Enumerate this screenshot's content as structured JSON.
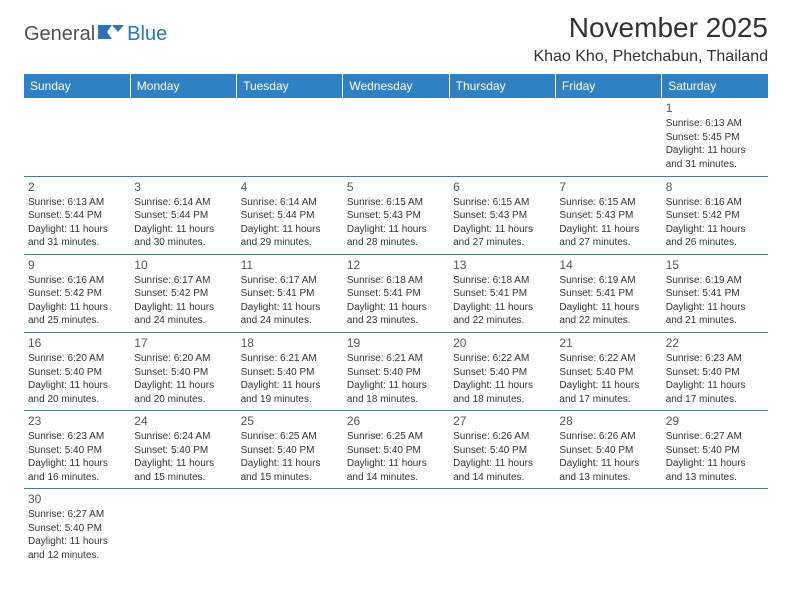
{
  "logo": {
    "part1": "General",
    "part2": "Blue"
  },
  "title": "November 2025",
  "location": "Khao Kho, Phetchabun, Thailand",
  "colors": {
    "header_bg": "#3080c4",
    "header_text": "#ffffff",
    "border": "#3080c4",
    "logo_gray": "#505050",
    "logo_blue": "#2975b9",
    "text": "#333333"
  },
  "days": [
    "Sunday",
    "Monday",
    "Tuesday",
    "Wednesday",
    "Thursday",
    "Friday",
    "Saturday"
  ],
  "weeks": [
    [
      null,
      null,
      null,
      null,
      null,
      null,
      {
        "n": "1",
        "sr": "6:13 AM",
        "ss": "5:45 PM",
        "dl": "11 hours and 31 minutes."
      }
    ],
    [
      {
        "n": "2",
        "sr": "6:13 AM",
        "ss": "5:44 PM",
        "dl": "11 hours and 31 minutes."
      },
      {
        "n": "3",
        "sr": "6:14 AM",
        "ss": "5:44 PM",
        "dl": "11 hours and 30 minutes."
      },
      {
        "n": "4",
        "sr": "6:14 AM",
        "ss": "5:44 PM",
        "dl": "11 hours and 29 minutes."
      },
      {
        "n": "5",
        "sr": "6:15 AM",
        "ss": "5:43 PM",
        "dl": "11 hours and 28 minutes."
      },
      {
        "n": "6",
        "sr": "6:15 AM",
        "ss": "5:43 PM",
        "dl": "11 hours and 27 minutes."
      },
      {
        "n": "7",
        "sr": "6:15 AM",
        "ss": "5:43 PM",
        "dl": "11 hours and 27 minutes."
      },
      {
        "n": "8",
        "sr": "6:16 AM",
        "ss": "5:42 PM",
        "dl": "11 hours and 26 minutes."
      }
    ],
    [
      {
        "n": "9",
        "sr": "6:16 AM",
        "ss": "5:42 PM",
        "dl": "11 hours and 25 minutes."
      },
      {
        "n": "10",
        "sr": "6:17 AM",
        "ss": "5:42 PM",
        "dl": "11 hours and 24 minutes."
      },
      {
        "n": "11",
        "sr": "6:17 AM",
        "ss": "5:41 PM",
        "dl": "11 hours and 24 minutes."
      },
      {
        "n": "12",
        "sr": "6:18 AM",
        "ss": "5:41 PM",
        "dl": "11 hours and 23 minutes."
      },
      {
        "n": "13",
        "sr": "6:18 AM",
        "ss": "5:41 PM",
        "dl": "11 hours and 22 minutes."
      },
      {
        "n": "14",
        "sr": "6:19 AM",
        "ss": "5:41 PM",
        "dl": "11 hours and 22 minutes."
      },
      {
        "n": "15",
        "sr": "6:19 AM",
        "ss": "5:41 PM",
        "dl": "11 hours and 21 minutes."
      }
    ],
    [
      {
        "n": "16",
        "sr": "6:20 AM",
        "ss": "5:40 PM",
        "dl": "11 hours and 20 minutes."
      },
      {
        "n": "17",
        "sr": "6:20 AM",
        "ss": "5:40 PM",
        "dl": "11 hours and 20 minutes."
      },
      {
        "n": "18",
        "sr": "6:21 AM",
        "ss": "5:40 PM",
        "dl": "11 hours and 19 minutes."
      },
      {
        "n": "19",
        "sr": "6:21 AM",
        "ss": "5:40 PM",
        "dl": "11 hours and 18 minutes."
      },
      {
        "n": "20",
        "sr": "6:22 AM",
        "ss": "5:40 PM",
        "dl": "11 hours and 18 minutes."
      },
      {
        "n": "21",
        "sr": "6:22 AM",
        "ss": "5:40 PM",
        "dl": "11 hours and 17 minutes."
      },
      {
        "n": "22",
        "sr": "6:23 AM",
        "ss": "5:40 PM",
        "dl": "11 hours and 17 minutes."
      }
    ],
    [
      {
        "n": "23",
        "sr": "6:23 AM",
        "ss": "5:40 PM",
        "dl": "11 hours and 16 minutes."
      },
      {
        "n": "24",
        "sr": "6:24 AM",
        "ss": "5:40 PM",
        "dl": "11 hours and 15 minutes."
      },
      {
        "n": "25",
        "sr": "6:25 AM",
        "ss": "5:40 PM",
        "dl": "11 hours and 15 minutes."
      },
      {
        "n": "26",
        "sr": "6:25 AM",
        "ss": "5:40 PM",
        "dl": "11 hours and 14 minutes."
      },
      {
        "n": "27",
        "sr": "6:26 AM",
        "ss": "5:40 PM",
        "dl": "11 hours and 14 minutes."
      },
      {
        "n": "28",
        "sr": "6:26 AM",
        "ss": "5:40 PM",
        "dl": "11 hours and 13 minutes."
      },
      {
        "n": "29",
        "sr": "6:27 AM",
        "ss": "5:40 PM",
        "dl": "11 hours and 13 minutes."
      }
    ],
    [
      {
        "n": "30",
        "sr": "6:27 AM",
        "ss": "5:40 PM",
        "dl": "11 hours and 12 minutes."
      },
      null,
      null,
      null,
      null,
      null,
      null
    ]
  ],
  "labels": {
    "sunrise": "Sunrise:",
    "sunset": "Sunset:",
    "daylight": "Daylight:"
  }
}
